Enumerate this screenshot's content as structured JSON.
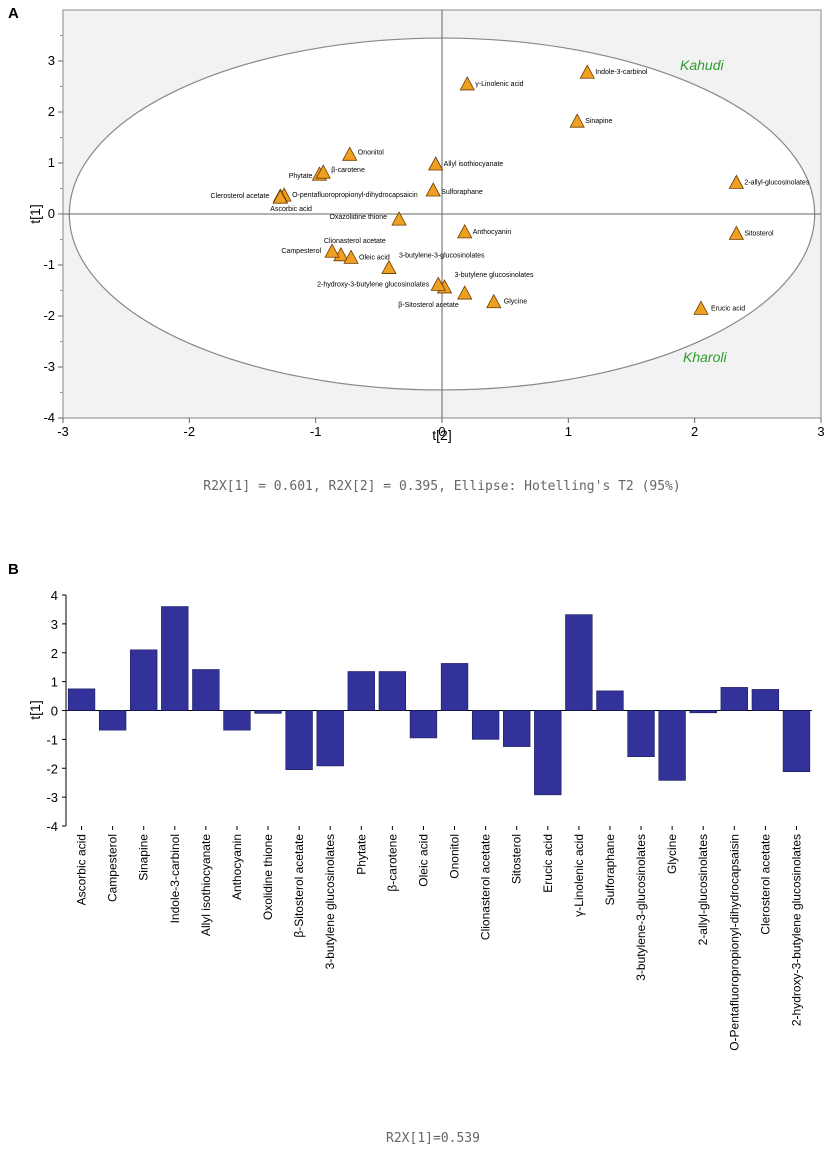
{
  "panel_a": {
    "letter": "A",
    "caption": "R2X[1] = 0.601, R2X[2] = 0.395, Ellipse: Hotelling's T2 (95%)",
    "group_labels": {
      "top": "Kahudi",
      "bottom": "Kharoli"
    },
    "marker_color": "#f0a020",
    "plot_bg": "#f2f2f2"
  },
  "panel_b": {
    "letter": "B",
    "caption": "R2X[1]=0.539",
    "bar_color": "#32329a"
  },
  "chart_data": [
    {
      "type": "scatter",
      "title": "",
      "xlabel": "t[2]",
      "ylabel": "t[1]",
      "xlim": [
        -3,
        3
      ],
      "ylim": [
        -4,
        4
      ],
      "xticks": [
        -3,
        -2,
        -1,
        0,
        1,
        2,
        3
      ],
      "yticks": [
        -4,
        -3,
        -2,
        -1,
        0,
        1,
        2,
        3
      ],
      "ellipse": {
        "center": [
          0,
          0
        ],
        "semi_axes": [
          2.95,
          3.45
        ],
        "name": "Hotelling's T2 (95%)"
      },
      "points": [
        {
          "name": "Indole-3-carbinol",
          "x": 1.15,
          "y": 2.78
        },
        {
          "name": "γ-Linolenic acid",
          "x": 0.2,
          "y": 2.55
        },
        {
          "name": "Sinapine",
          "x": 1.07,
          "y": 1.82
        },
        {
          "name": "Ononitol",
          "x": -0.73,
          "y": 1.17
        },
        {
          "name": "Allyl isothiocyanate",
          "x": -0.05,
          "y": 0.98
        },
        {
          "name": "Phytate",
          "x": -0.97,
          "y": 0.78
        },
        {
          "name": "β-carotene",
          "x": -0.94,
          "y": 0.82
        },
        {
          "name": "Sulforaphane",
          "x": -0.07,
          "y": 0.47
        },
        {
          "name": "2-allyl-glucosinolates",
          "x": 2.33,
          "y": 0.62
        },
        {
          "name": "O-pentafluoropropionyl-dihydrocapsaicin",
          "x": -1.25,
          "y": 0.37
        },
        {
          "name": "Clerosterol acetate",
          "x": -1.28,
          "y": 0.35
        },
        {
          "name": "Ascorbic acid",
          "x": -1.28,
          "y": 0.33
        },
        {
          "name": "Oxazolidine thione",
          "x": -0.34,
          "y": -0.1
        },
        {
          "name": "Anthocyanin",
          "x": 0.18,
          "y": -0.35
        },
        {
          "name": "Sitosterol",
          "x": 2.33,
          "y": -0.38
        },
        {
          "name": "Clionasterol acetate",
          "x": -0.8,
          "y": -0.8
        },
        {
          "name": "Campesterol",
          "x": -0.87,
          "y": -0.73
        },
        {
          "name": "Oleic acid",
          "x": -0.72,
          "y": -0.85
        },
        {
          "name": "3-butylene-3-glucosinolates",
          "x": -0.42,
          "y": -1.05
        },
        {
          "name": "3-butylene glucosinolates",
          "x": 0.02,
          "y": -1.43
        },
        {
          "name": "2-hydroxy-3-butylene glucosinolates",
          "x": -0.03,
          "y": -1.38
        },
        {
          "name": "β-Sitosterol acetate",
          "x": 0.18,
          "y": -1.55
        },
        {
          "name": "Glycine",
          "x": 0.41,
          "y": -1.72
        },
        {
          "name": "Erucic acid",
          "x": 2.05,
          "y": -1.85
        }
      ]
    },
    {
      "type": "bar",
      "title": "",
      "xlabel": "",
      "ylabel": "t[1]",
      "ylim": [
        -4,
        4
      ],
      "yticks": [
        -4,
        -3,
        -2,
        -1,
        0,
        1,
        2,
        3,
        4
      ],
      "categories": [
        "Ascorbic acid",
        "Campesterol",
        "Sinapine",
        "Indole-3-carbinol",
        "Allyl isothiocyanate",
        "Anthocyanin",
        "Oxolidine thione",
        "β-Sitosterol acetate",
        "3-butylene glucosinolates",
        "Phytate",
        "β-carotene",
        "Oleic acid",
        "Ononitol",
        "Clionasterol acetate",
        "Sitosterol",
        "Erucic acid",
        "γ-Linolenic acid",
        "Sulforaphane",
        "3-butylene-3-glucosinolates",
        "Glycine",
        "2-allyl-glucosinolates",
        "O-Pentafluoropropionyl-dihydrocapsaisin",
        "Clerosterol acetate",
        "2-hydroxy-3-butylene glucosinolates"
      ],
      "values": [
        0.75,
        -0.68,
        2.1,
        3.6,
        1.42,
        -0.68,
        -0.1,
        -2.05,
        -1.92,
        1.35,
        1.35,
        -0.95,
        1.63,
        -1.0,
        -1.25,
        -2.92,
        3.32,
        0.68,
        -1.6,
        -2.42,
        -0.08,
        0.8,
        0.73,
        -2.12
      ]
    }
  ]
}
